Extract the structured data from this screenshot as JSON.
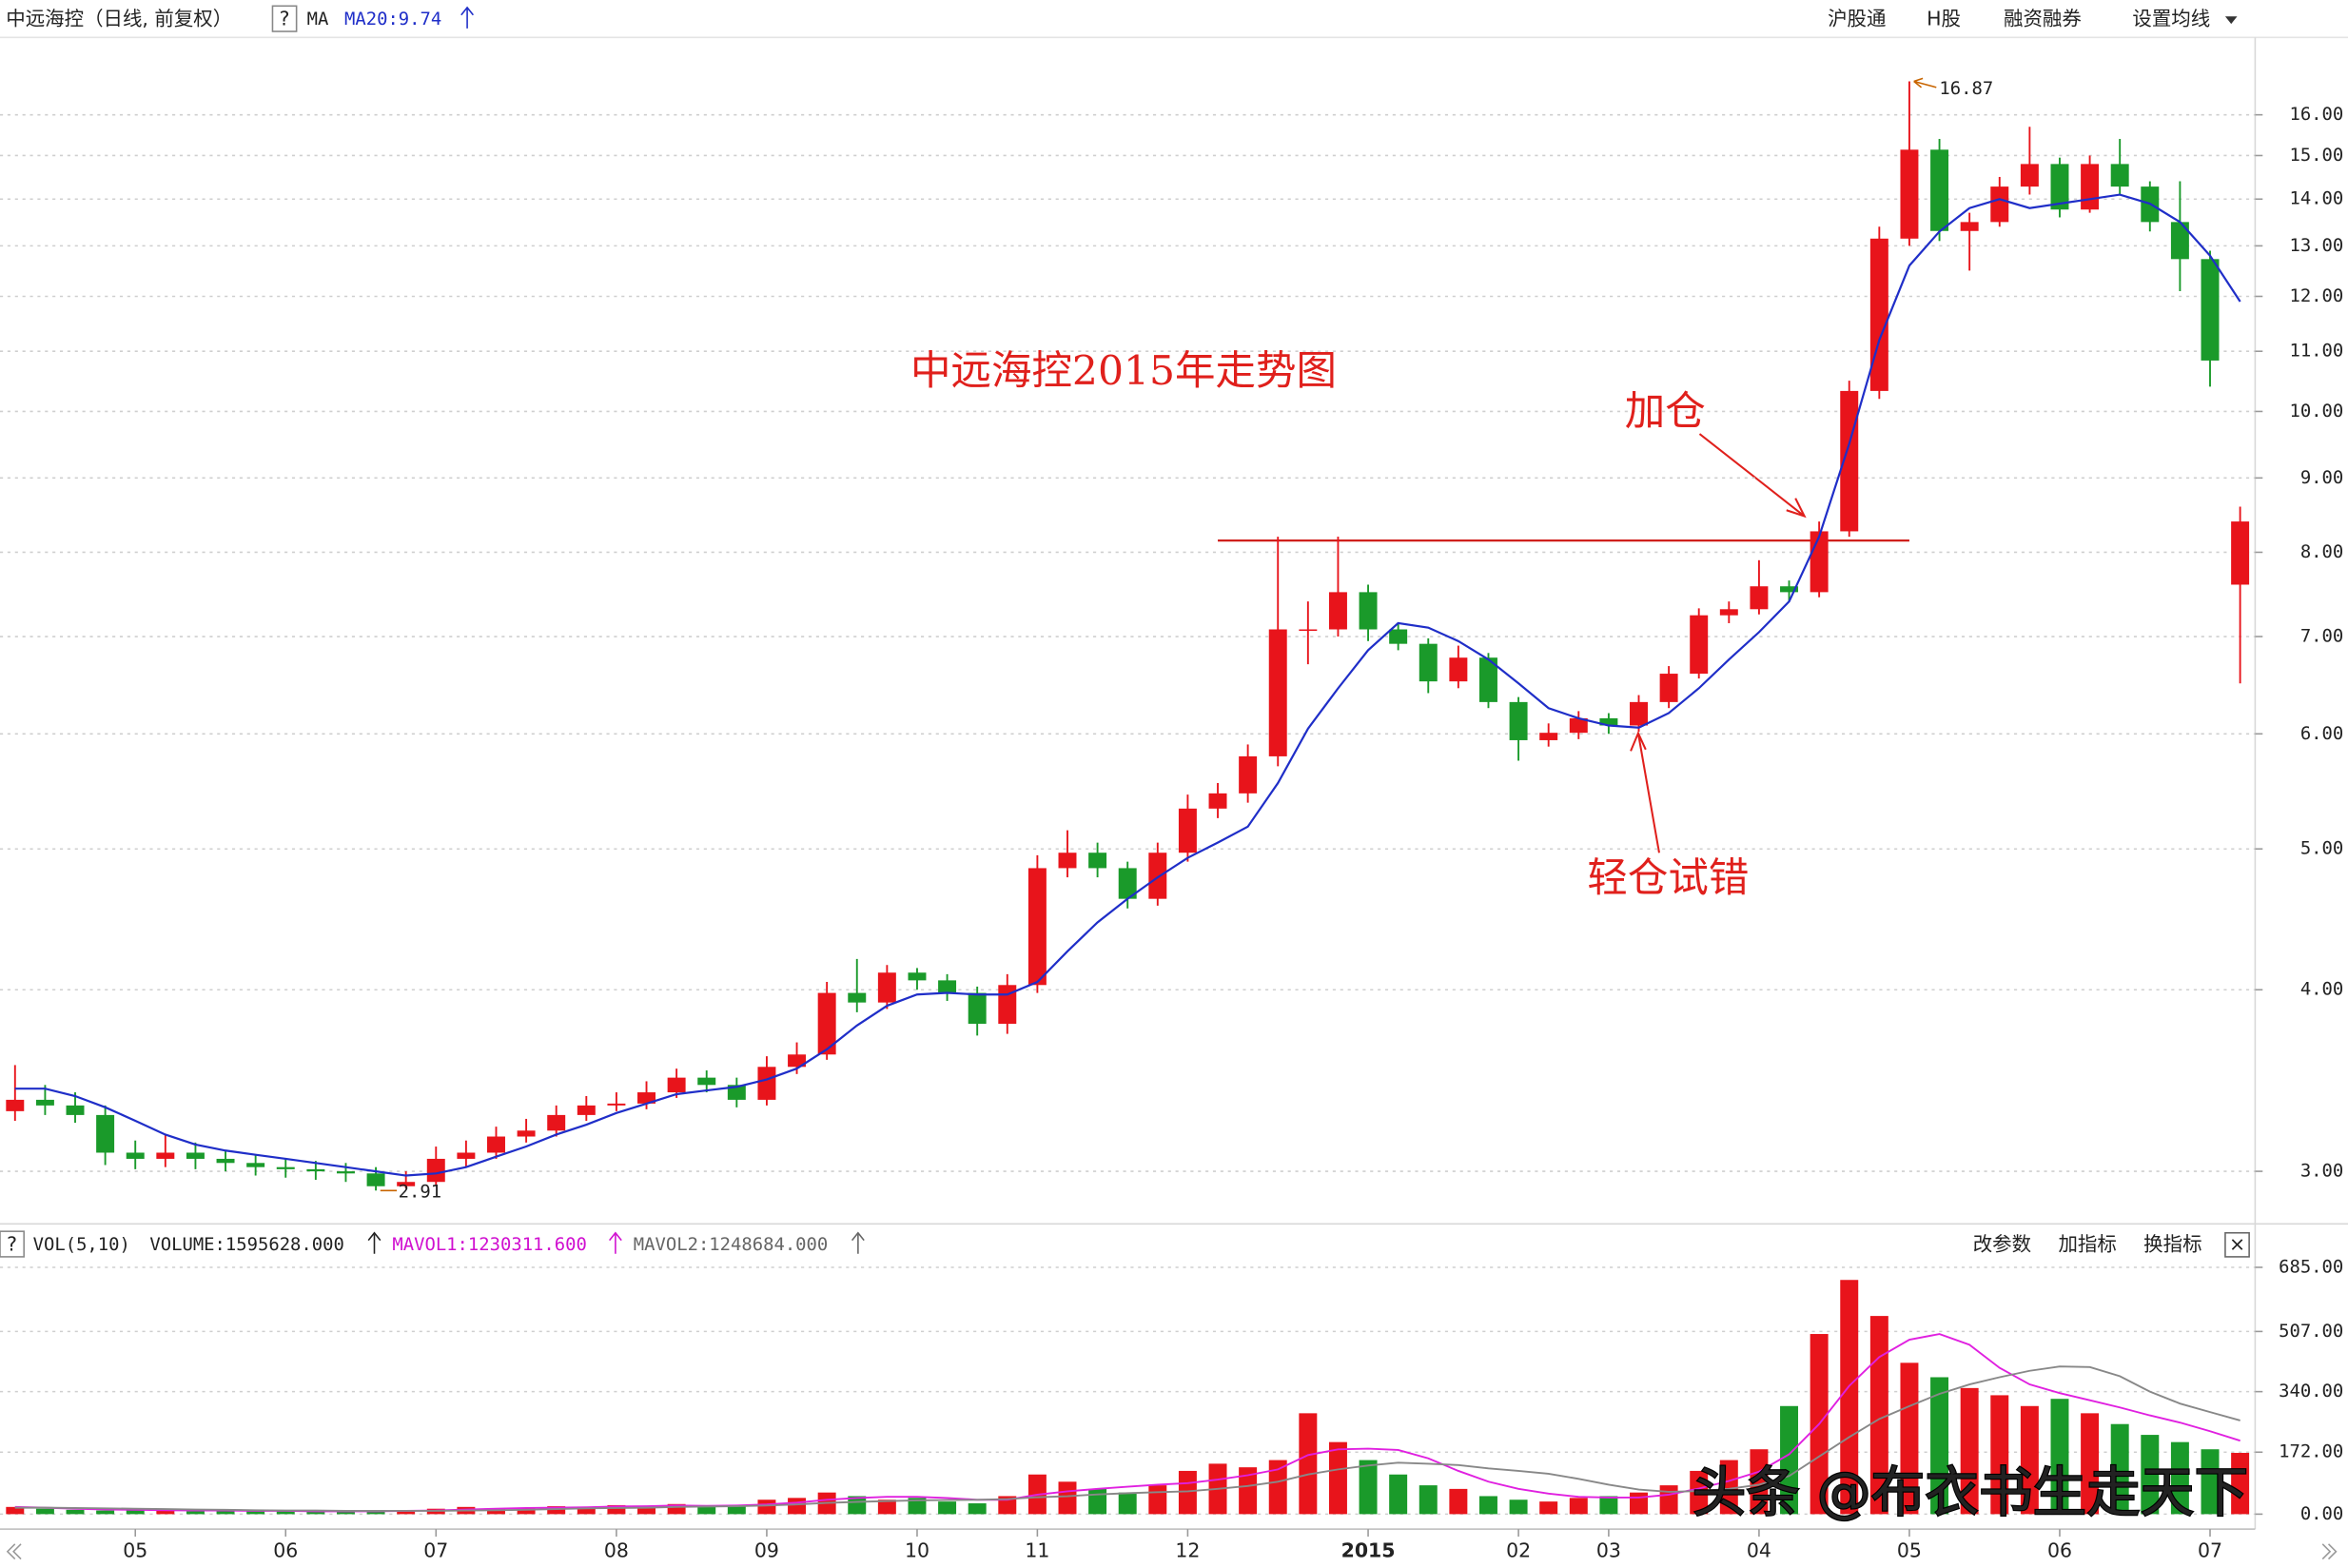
{
  "header": {
    "stock": "中远海控（日线, 前复权）",
    "help": "?",
    "ma": "MA",
    "ma_value": "MA20:9.74",
    "menu": [
      "沪股通",
      "H股",
      "融资融券",
      "设置均线"
    ]
  },
  "volume_header": {
    "help": "?",
    "name": "VOL(5,10)",
    "volume": "VOLUME:1595628.000",
    "mavol1": "MAVOL1:1230311.600",
    "mavol2": "MAVOL2:1248684.000",
    "menu": [
      "改参数",
      "加指标",
      "换指标"
    ],
    "close": "×"
  },
  "watermark": "头条 @布衣书生走天下",
  "chart_data": [
    {
      "type": "candlestick",
      "categories": [
        null,
        null,
        null,
        null,
        "05",
        null,
        null,
        null,
        null,
        "06",
        null,
        null,
        null,
        null,
        "07",
        null,
        null,
        null,
        null,
        null,
        "08",
        null,
        null,
        null,
        null,
        "09",
        null,
        null,
        null,
        null,
        "10",
        null,
        null,
        null,
        "11",
        null,
        null,
        null,
        null,
        "12",
        null,
        null,
        null,
        null,
        null,
        "2015",
        null,
        null,
        null,
        null,
        "02",
        null,
        null,
        "03",
        null,
        null,
        null,
        null,
        "04",
        null,
        null,
        null,
        null,
        "05",
        null,
        null,
        null,
        null,
        "06",
        null,
        null,
        null,
        null,
        "07",
        null
      ],
      "open": [
        3.3,
        3.36,
        3.33,
        3.28,
        3.09,
        3.06,
        3.09,
        3.06,
        3.04,
        3.02,
        3.01,
        3.0,
        2.99,
        2.93,
        2.95,
        3.06,
        3.09,
        3.17,
        3.2,
        3.28,
        3.33,
        3.34,
        3.4,
        3.48,
        3.44,
        3.36,
        3.54,
        3.61,
        3.98,
        3.92,
        4.11,
        4.06,
        3.98,
        3.79,
        4.03,
        4.85,
        4.97,
        4.85,
        4.62,
        4.97,
        5.33,
        5.46,
        5.79,
        7.08,
        7.08,
        7.51,
        7.08,
        6.92,
        6.52,
        6.77,
        6.31,
        5.94,
        6.01,
        6.15,
        6.08,
        6.31,
        6.6,
        7.24,
        7.31,
        7.58,
        7.51,
        8.27,
        10.33,
        13.15,
        15.14,
        13.31,
        13.5,
        14.28,
        14.8,
        13.77,
        14.8,
        14.28,
        13.5,
        12.73,
        7.6
      ],
      "high": [
        3.55,
        3.44,
        3.4,
        3.33,
        3.15,
        3.18,
        3.14,
        3.1,
        3.08,
        3.06,
        3.05,
        3.04,
        3.02,
        3.0,
        3.12,
        3.15,
        3.22,
        3.26,
        3.33,
        3.38,
        3.4,
        3.46,
        3.53,
        3.52,
        3.48,
        3.6,
        3.68,
        4.05,
        4.2,
        4.16,
        4.14,
        4.1,
        4.02,
        4.1,
        4.95,
        5.15,
        5.05,
        4.9,
        5.05,
        5.45,
        5.55,
        5.9,
        8.2,
        7.4,
        8.2,
        7.6,
        7.15,
        6.98,
        6.9,
        6.82,
        6.36,
        6.1,
        6.22,
        6.2,
        6.38,
        6.68,
        7.32,
        7.4,
        7.9,
        7.65,
        8.4,
        10.5,
        13.4,
        16.87,
        15.4,
        13.7,
        14.5,
        15.7,
        14.95,
        15.0,
        15.4,
        14.4,
        14.4,
        12.9,
        8.6
      ],
      "low": [
        3.25,
        3.28,
        3.24,
        3.03,
        3.01,
        3.02,
        3.01,
        3.0,
        2.98,
        2.97,
        2.96,
        2.95,
        2.91,
        2.92,
        2.93,
        3.02,
        3.06,
        3.14,
        3.17,
        3.25,
        3.3,
        3.31,
        3.37,
        3.4,
        3.32,
        3.33,
        3.5,
        3.58,
        3.86,
        3.88,
        4.0,
        3.93,
        3.72,
        3.73,
        3.98,
        4.78,
        4.78,
        4.55,
        4.57,
        4.9,
        5.25,
        5.38,
        5.7,
        6.7,
        7.0,
        6.95,
        6.85,
        6.4,
        6.45,
        6.25,
        5.75,
        5.88,
        5.95,
        6.0,
        6.02,
        6.25,
        6.55,
        7.15,
        7.25,
        7.4,
        7.45,
        8.2,
        10.2,
        13.0,
        13.1,
        12.5,
        13.4,
        14.1,
        13.6,
        13.7,
        14.1,
        13.3,
        12.1,
        10.4,
        6.5
      ],
      "close": [
        3.36,
        3.33,
        3.28,
        3.09,
        3.06,
        3.09,
        3.06,
        3.04,
        3.02,
        3.01,
        3.0,
        2.99,
        2.93,
        2.95,
        3.06,
        3.09,
        3.17,
        3.2,
        3.28,
        3.33,
        3.34,
        3.4,
        3.48,
        3.44,
        3.36,
        3.54,
        3.61,
        3.98,
        3.92,
        4.11,
        4.06,
        3.98,
        3.79,
        4.03,
        4.85,
        4.97,
        4.85,
        4.62,
        4.97,
        5.33,
        5.46,
        5.79,
        7.08,
        7.08,
        7.51,
        7.08,
        6.92,
        6.52,
        6.77,
        6.31,
        5.94,
        6.01,
        6.15,
        6.08,
        6.31,
        6.6,
        7.24,
        7.31,
        7.58,
        7.51,
        8.27,
        10.33,
        13.15,
        15.14,
        13.31,
        13.5,
        14.28,
        14.8,
        13.77,
        14.8,
        14.28,
        13.5,
        12.73,
        10.84,
        8.4
      ],
      "up_color": "#e8141b",
      "down_color": "#1a9a2a",
      "series": [
        {
          "color": "#1f2ec8",
          "values": [
            3.42,
            3.42,
            3.38,
            3.32,
            3.25,
            3.18,
            3.13,
            3.1,
            3.08,
            3.06,
            3.04,
            3.02,
            3.0,
            2.98,
            2.99,
            3.02,
            3.07,
            3.12,
            3.18,
            3.23,
            3.29,
            3.34,
            3.39,
            3.41,
            3.43,
            3.47,
            3.53,
            3.64,
            3.78,
            3.9,
            3.97,
            3.98,
            3.97,
            3.97,
            4.05,
            4.25,
            4.45,
            4.62,
            4.78,
            4.93,
            5.05,
            5.18,
            5.55,
            6.05,
            6.45,
            6.85,
            7.15,
            7.1,
            6.95,
            6.75,
            6.5,
            6.25,
            6.15,
            6.08,
            6.06,
            6.2,
            6.45,
            6.75,
            7.05,
            7.4,
            8.2,
            9.5,
            11.2,
            12.6,
            13.3,
            13.8,
            14.0,
            13.8,
            13.9,
            14.0,
            14.1,
            13.9,
            13.5,
            12.8,
            11.9
          ]
        }
      ],
      "max_index": 63,
      "min_index": 12,
      "reference_line": {
        "value": 8.15,
        "from": 40,
        "to": 63
      },
      "annotations": [
        {
          "text": "中远海控2015年走势图"
        },
        {
          "text": "加仓"
        },
        {
          "text": "轻仓试错"
        }
      ],
      "log_scale": true,
      "ylim": [
        2.78,
        17.25
      ],
      "yticks": [
        {
          "value": 3,
          "label": "3.00"
        },
        {
          "value": 4,
          "label": "4.00"
        },
        {
          "value": 5,
          "label": "5.00"
        },
        {
          "value": 6,
          "label": "6.00"
        },
        {
          "value": 7,
          "label": "7.00"
        },
        {
          "value": 8,
          "label": "8.00"
        },
        {
          "value": 9,
          "label": "9.00"
        },
        {
          "value": 10,
          "label": "10.00"
        },
        {
          "value": 11,
          "label": "11.00"
        },
        {
          "value": 12,
          "label": "12.00"
        },
        {
          "value": 13,
          "label": "13.00"
        },
        {
          "value": 14,
          "label": "14.00"
        },
        {
          "value": 15,
          "label": "15.00"
        },
        {
          "value": 16,
          "label": "16.00"
        }
      ],
      "grid": true
    },
    {
      "type": "bar",
      "values": [
        20,
        15,
        12,
        10,
        12,
        10,
        8,
        10,
        8,
        8,
        7,
        8,
        8,
        10,
        15,
        20,
        15,
        18,
        22,
        20,
        25,
        22,
        28,
        20,
        25,
        40,
        45,
        60,
        50,
        40,
        45,
        35,
        30,
        50,
        110,
        90,
        70,
        60,
        80,
        120,
        140,
        130,
        150,
        280,
        200,
        150,
        110,
        80,
        70,
        50,
        40,
        35,
        45,
        50,
        60,
        80,
        120,
        150,
        180,
        300,
        500,
        650,
        550,
        420,
        380,
        350,
        330,
        300,
        320,
        280,
        250,
        220,
        200,
        180,
        170
      ],
      "series": [
        {
          "color": "#e020e0",
          "values": [
            20,
            18,
            15,
            13,
            12,
            11,
            10,
            10,
            9,
            9,
            8,
            8,
            8,
            9,
            10,
            13,
            15,
            17,
            18,
            19,
            21,
            22,
            24,
            23,
            24,
            27,
            32,
            40,
            45,
            48,
            48,
            45,
            40,
            40,
            54,
            63,
            70,
            76,
            82,
            86,
            96,
            108,
            124,
            164,
            180,
            182,
            178,
            155,
            120,
            90,
            70,
            57,
            48,
            46,
            46,
            54,
            71,
            92,
            118,
            166,
            250,
            356,
            436,
            484,
            500,
            470,
            406,
            360,
            336,
            316,
            296,
            274,
            254,
            230,
            204
          ]
        },
        {
          "color": "#888888",
          "values": [
            18,
            18,
            17,
            16,
            15,
            14,
            13,
            12,
            11,
            10,
            10,
            9,
            9,
            9,
            9,
            10,
            11,
            12,
            14,
            16,
            17,
            18,
            20,
            21,
            22,
            24,
            27,
            31,
            34,
            36,
            38,
            39,
            40,
            42,
            47,
            50,
            55,
            58,
            61,
            63,
            70,
            78,
            90,
            110,
            124,
            135,
            143,
            140,
            136,
            127,
            120,
            112,
            98,
            82,
            68,
            62,
            64,
            70,
            82,
            106,
            160,
            214,
            264,
            300,
            334,
            360,
            380,
            398,
            410,
            408,
            383,
            340,
            307,
            283,
            260
          ]
        }
      ],
      "ylim": [
        0,
        735
      ],
      "yticks": [
        {
          "value": 0,
          "label": "0.00"
        },
        {
          "value": 172,
          "label": "172.00"
        },
        {
          "value": 340,
          "label": "340.00"
        },
        {
          "value": 507,
          "label": "507.00"
        },
        {
          "value": 685,
          "label": "685.00"
        }
      ],
      "grid": true
    }
  ]
}
